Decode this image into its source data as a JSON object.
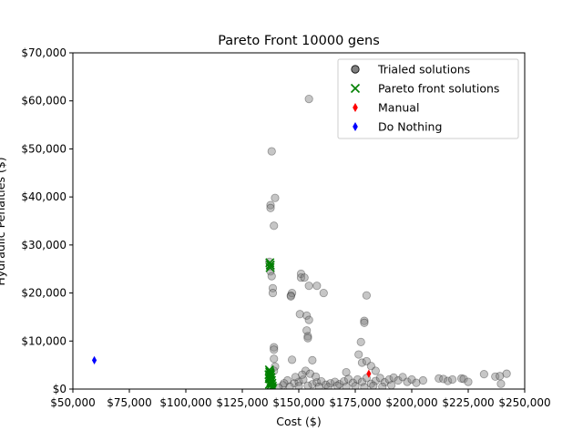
{
  "chart_data": {
    "type": "scatter",
    "title": "Pareto Front 10000 gens",
    "xlabel": "Cost ($)",
    "ylabel": "Hydraulic Penalties ($)",
    "xlim": [
      50000,
      250000
    ],
    "ylim": [
      0,
      70000
    ],
    "x_ticks": [
      50000,
      75000,
      100000,
      125000,
      150000,
      175000,
      200000,
      225000,
      250000
    ],
    "x_tick_labels": [
      "$50,000",
      "$75,000",
      "$100,000",
      "$125,000",
      "$150,000",
      "$175,000",
      "$200,000",
      "$225,000",
      "$250,000"
    ],
    "y_ticks": [
      0,
      10000,
      20000,
      30000,
      40000,
      50000,
      60000,
      70000
    ],
    "y_tick_labels": [
      "$0",
      "$10,000",
      "$20,000",
      "$30,000",
      "$40,000",
      "$50,000",
      "$60,000",
      "$70,000"
    ],
    "grid": false,
    "legend_position": "top-right",
    "colors": {
      "trialed": "#808080",
      "pareto": "#008000",
      "manual": "#ff0000",
      "do_nothing": "#0000ff"
    },
    "series": [
      {
        "name": "Trialed solutions",
        "marker": "circle",
        "points": [
          [
            138000,
            49500
          ],
          [
            139500,
            39800
          ],
          [
            137500,
            38300
          ],
          [
            137500,
            37700
          ],
          [
            139000,
            34000
          ],
          [
            137000,
            26500
          ],
          [
            137200,
            25500
          ],
          [
            137500,
            24500
          ],
          [
            138000,
            23500
          ],
          [
            138500,
            21000
          ],
          [
            138500,
            20000
          ],
          [
            146500,
            19500
          ],
          [
            147000,
            20000
          ],
          [
            146500,
            19300
          ],
          [
            151000,
            24000
          ],
          [
            151000,
            23200
          ],
          [
            152500,
            23200
          ],
          [
            154500,
            21500
          ],
          [
            158000,
            21500
          ],
          [
            161000,
            20000
          ],
          [
            154500,
            60400
          ],
          [
            150500,
            15600
          ],
          [
            153500,
            15300
          ],
          [
            154500,
            14400
          ],
          [
            153500,
            12200
          ],
          [
            154000,
            11000
          ],
          [
            154000,
            10600
          ],
          [
            147000,
            6100
          ],
          [
            156000,
            6000
          ],
          [
            139000,
            8700
          ],
          [
            139000,
            8200
          ],
          [
            139000,
            6300
          ],
          [
            139500,
            4700
          ],
          [
            139000,
            3800
          ],
          [
            180000,
            19500
          ],
          [
            179000,
            14200
          ],
          [
            179000,
            13800
          ],
          [
            177500,
            9800
          ],
          [
            176500,
            7200
          ],
          [
            178000,
            5500
          ],
          [
            180000,
            5800
          ],
          [
            182000,
            4800
          ],
          [
            171000,
            3500
          ],
          [
            184000,
            3800
          ],
          [
            153000,
            3800
          ],
          [
            155000,
            3200
          ],
          [
            145000,
            1800
          ],
          [
            148000,
            1200
          ],
          [
            150000,
            1500
          ],
          [
            152000,
            2000
          ],
          [
            156000,
            1000
          ],
          [
            158000,
            1400
          ],
          [
            160000,
            1600
          ],
          [
            162000,
            900
          ],
          [
            164000,
            1200
          ],
          [
            166000,
            1500
          ],
          [
            168000,
            1000
          ],
          [
            170000,
            1600
          ],
          [
            172000,
            2100
          ],
          [
            174000,
            1300
          ],
          [
            176000,
            2000
          ],
          [
            178000,
            1500
          ],
          [
            180000,
            2300
          ],
          [
            182000,
            1100
          ],
          [
            184000,
            1700
          ],
          [
            186000,
            2300
          ],
          [
            188000,
            1400
          ],
          [
            190000,
            2000
          ],
          [
            192000,
            2400
          ],
          [
            194000,
            1800
          ],
          [
            196000,
            2500
          ],
          [
            198000,
            1500
          ],
          [
            200000,
            2000
          ],
          [
            202000,
            1300
          ],
          [
            205000,
            1800
          ],
          [
            212000,
            2200
          ],
          [
            214000,
            2100
          ],
          [
            216000,
            1700
          ],
          [
            218000,
            2000
          ],
          [
            222000,
            2200
          ],
          [
            223000,
            2100
          ],
          [
            225000,
            1500
          ],
          [
            232000,
            3100
          ],
          [
            237000,
            2600
          ],
          [
            239000,
            2700
          ],
          [
            239500,
            1100
          ],
          [
            242000,
            3200
          ],
          [
            143000,
            800
          ],
          [
            146000,
            500
          ],
          [
            150000,
            600
          ],
          [
            154000,
            700
          ],
          [
            159000,
            500
          ],
          [
            163000,
            400
          ],
          [
            167000,
            700
          ],
          [
            171000,
            500
          ],
          [
            175000,
            600
          ],
          [
            179000,
            400
          ],
          [
            183000,
            700
          ],
          [
            187000,
            500
          ],
          [
            191000,
            800
          ],
          [
            141000,
            300
          ],
          [
            143500,
            1200
          ],
          [
            148500,
            2500
          ],
          [
            151500,
            3000
          ],
          [
            157500,
            2600
          ]
        ]
      },
      {
        "name": "Pareto front solutions",
        "marker": "x",
        "points": [
          [
            137200,
            26300
          ],
          [
            137400,
            25800
          ],
          [
            137300,
            25300
          ],
          [
            137000,
            4000
          ],
          [
            137100,
            3600
          ],
          [
            137300,
            3300
          ],
          [
            137500,
            3000
          ],
          [
            137200,
            2700
          ],
          [
            137700,
            2400
          ],
          [
            137400,
            2100
          ],
          [
            137900,
            1800
          ],
          [
            137600,
            1500
          ],
          [
            138100,
            1200
          ],
          [
            137800,
            900
          ],
          [
            138300,
            600
          ],
          [
            138000,
            300
          ],
          [
            138500,
            100
          ],
          [
            136800,
            3000
          ],
          [
            136900,
            2200
          ],
          [
            137000,
            1000
          ]
        ]
      },
      {
        "name": "Manual",
        "marker": "diamond",
        "points": [
          [
            181000,
            3200
          ]
        ]
      },
      {
        "name": "Do Nothing",
        "marker": "diamond",
        "points": [
          [
            59500,
            6000
          ]
        ]
      }
    ]
  }
}
